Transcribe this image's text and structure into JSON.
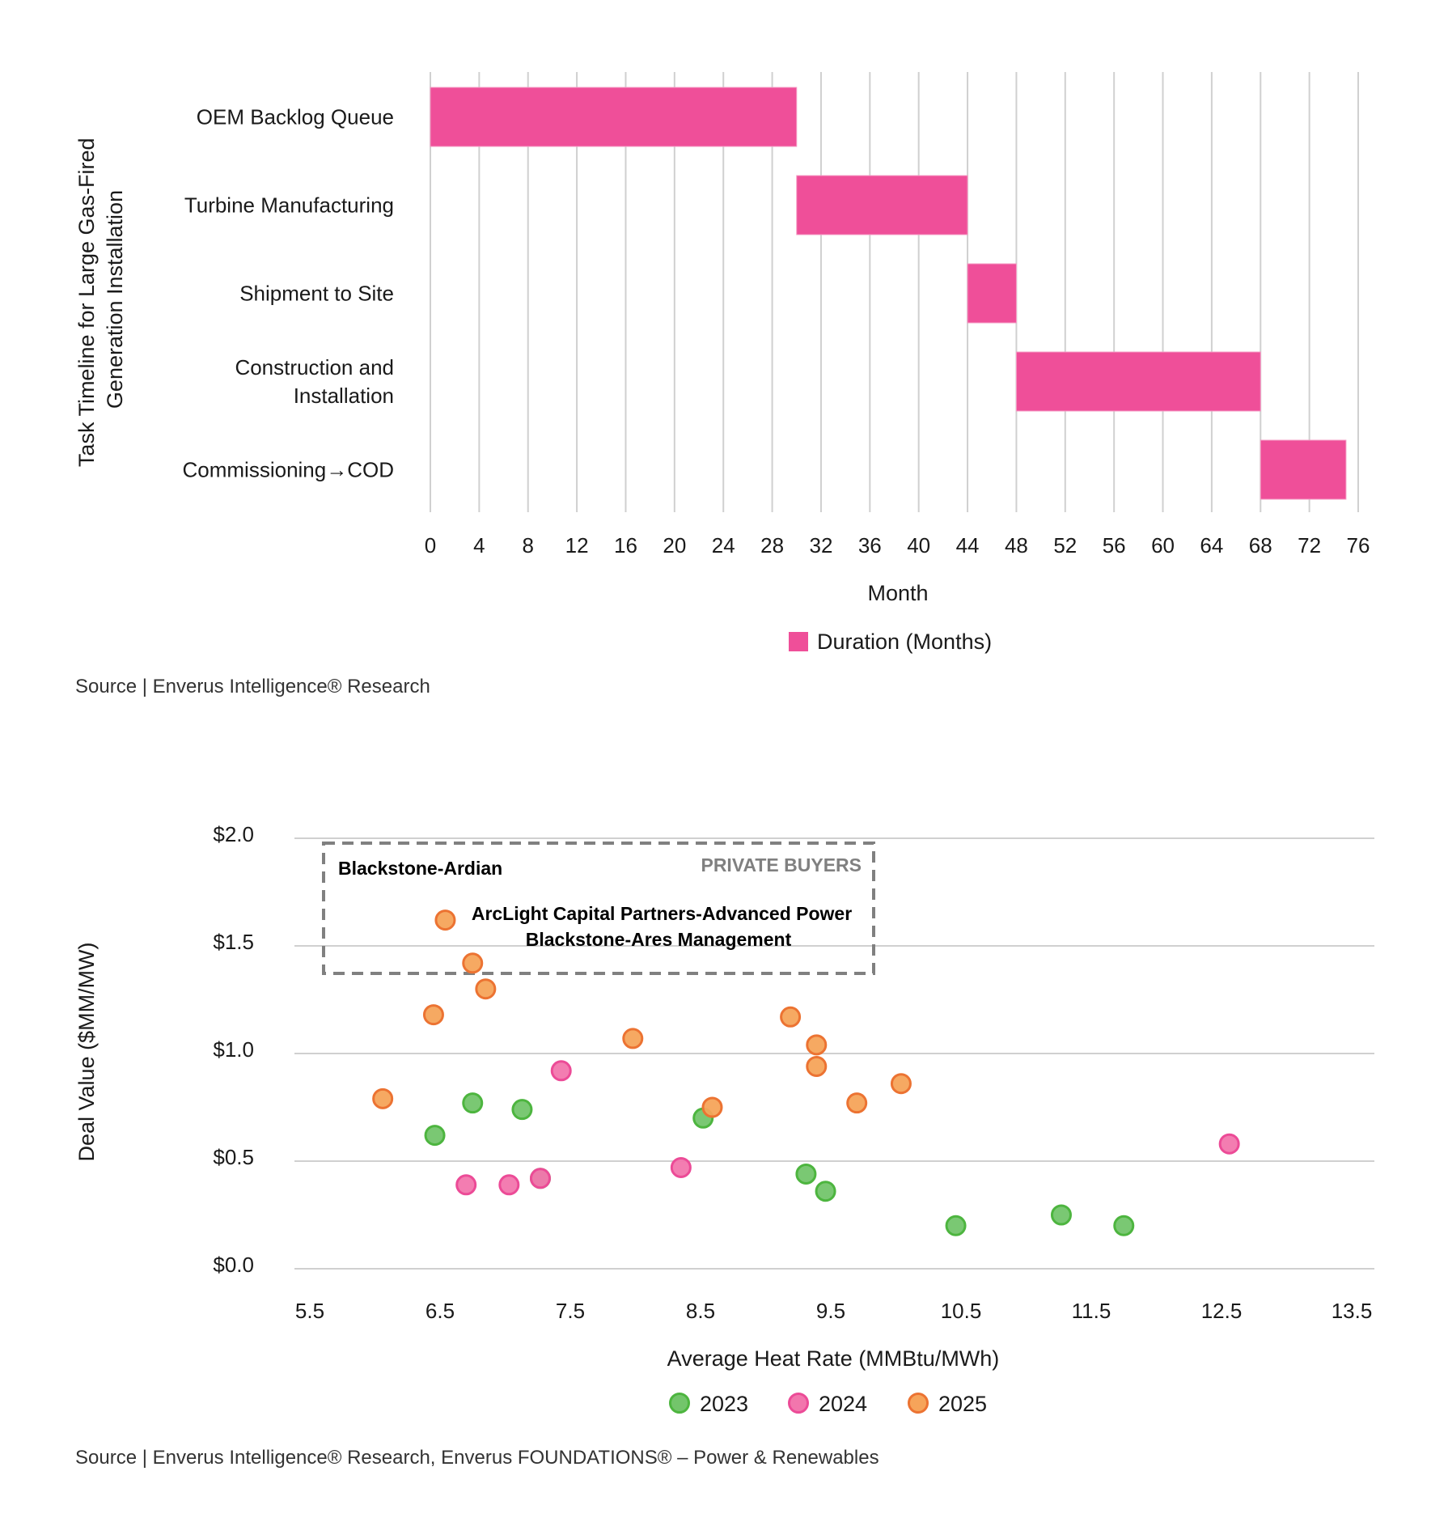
{
  "chart_data": [
    {
      "type": "bar",
      "subtype": "gantt-horizontal",
      "title": "",
      "ylabel_lines": [
        "Task Timeline for Large Gas-Fired",
        "Generation Installation"
      ],
      "xlabel": "Month",
      "xlim": [
        0,
        76
      ],
      "xticks": [
        0,
        4,
        8,
        12,
        16,
        20,
        24,
        28,
        32,
        36,
        40,
        44,
        48,
        52,
        56,
        60,
        64,
        68,
        72,
        76
      ],
      "grid": "vertical",
      "categories": [
        {
          "label_lines": [
            "OEM Backlog Queue"
          ],
          "start": 0,
          "duration": 30
        },
        {
          "label_lines": [
            "Turbine Manufacturing"
          ],
          "start": 30,
          "duration": 14
        },
        {
          "label_lines": [
            "Shipment to Site"
          ],
          "start": 44,
          "duration": 4
        },
        {
          "label_lines": [
            "Construction and",
            "Installation"
          ],
          "start": 48,
          "duration": 20
        },
        {
          "label_lines": [
            "Commissioning→COD"
          ],
          "start": 68,
          "duration": 7
        }
      ],
      "series": [
        {
          "name": "Duration (Months)",
          "color": "#ef4f99"
        }
      ],
      "legend": {
        "position": "bottom",
        "entries": [
          "Duration (Months)"
        ]
      },
      "source": "Source | Enverus Intelligence® Research"
    },
    {
      "type": "scatter",
      "title": "",
      "xlabel": "Average Heat Rate (MMBtu/MWh)",
      "ylabel": "Deal Value ($MM/MW)",
      "xlim": [
        5.5,
        13.5
      ],
      "ylim": [
        0,
        2.0
      ],
      "xticks": [
        "5.5",
        "6.5",
        "7.5",
        "8.5",
        "9.5",
        "10.5",
        "11.5",
        "12.5",
        "13.5"
      ],
      "yticks": [
        "$0.0",
        "$0.5",
        "$1.0",
        "$1.5",
        "$2.0"
      ],
      "grid": "horizontal",
      "series": [
        {
          "name": "2023",
          "fill": "#73c56b",
          "stroke": "#4db53f",
          "points": [
            [
              6.46,
              0.62
            ],
            [
              6.75,
              0.77
            ],
            [
              7.13,
              0.74
            ],
            [
              8.52,
              0.7
            ],
            [
              9.31,
              0.44
            ],
            [
              9.46,
              0.36
            ],
            [
              10.46,
              0.2
            ],
            [
              11.27,
              0.25
            ],
            [
              11.75,
              0.2
            ],
            [
              7.27,
              0.42
            ]
          ]
        },
        {
          "name": "2024",
          "fill": "#f276ad",
          "stroke": "#ec4b97",
          "points": [
            [
              7.43,
              0.92
            ],
            [
              6.7,
              0.39
            ],
            [
              7.03,
              0.39
            ],
            [
              7.27,
              0.42
            ],
            [
              8.35,
              0.47
            ],
            [
              12.56,
              0.58
            ]
          ]
        },
        {
          "name": "2025",
          "fill": "#f6a45a",
          "stroke": "#ec7332",
          "points": [
            [
              6.54,
              1.62
            ],
            [
              6.75,
              1.42
            ],
            [
              6.85,
              1.3
            ],
            [
              6.45,
              1.18
            ],
            [
              7.98,
              1.07
            ],
            [
              6.06,
              0.79
            ],
            [
              9.19,
              1.17
            ],
            [
              9.39,
              1.04
            ],
            [
              9.39,
              0.94
            ],
            [
              10.04,
              0.86
            ],
            [
              9.7,
              0.77
            ],
            [
              8.59,
              0.75
            ]
          ]
        }
      ],
      "annotation_box": {
        "label": "PRIVATE BUYERS",
        "deals": [
          "Blackstone-Ardian",
          "ArcLight Capital Partners-Advanced Power",
          "Blackstone-Ares Management"
        ]
      },
      "legend": {
        "position": "bottom",
        "entries": [
          "2023",
          "2024",
          "2025"
        ]
      },
      "source": "Source | Enverus Intelligence® Research, Enverus FOUNDATIONS® – Power & Renewables"
    }
  ]
}
